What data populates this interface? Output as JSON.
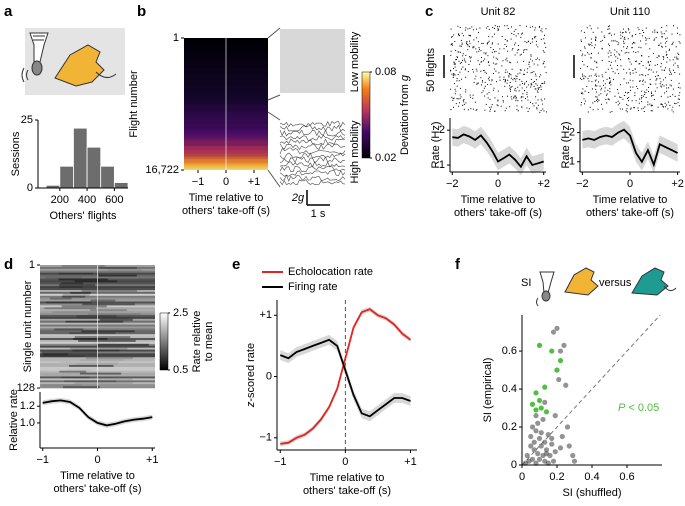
{
  "chart_data": [
    {
      "type": "histogram",
      "panel": "a",
      "xlabel": "Others' flights",
      "ylabel": "Sessions",
      "bins": [
        100,
        200,
        300,
        400,
        500,
        600,
        700
      ],
      "counts": [
        1,
        8,
        22,
        15,
        8,
        2
      ],
      "color": "#6d6d6d",
      "xlim": [
        40,
        700
      ],
      "xticks": [
        200,
        400,
        600
      ],
      "ylim": [
        0,
        25
      ],
      "yticks": [
        0,
        25
      ]
    },
    {
      "type": "heatmap",
      "panel": "b",
      "ylabel": "Flight number",
      "ylim": [
        1,
        16722
      ],
      "yticks": [
        1,
        {
          "value": 16722,
          "label": "16,722"
        }
      ],
      "xlim": [
        -1.5,
        1.5
      ],
      "xticks": [
        {
          "value": -1,
          "label": "−1"
        },
        0,
        {
          "value": 1,
          "label": "+1"
        }
      ],
      "xlabel": [
        "Time relative to",
        "others' take-off (s)"
      ],
      "colormap": "inferno",
      "colorbar": {
        "label": "Deviation from",
        "label_symbol": "g",
        "lim": [
          0.02,
          0.08
        ],
        "ticks": [
          0.02,
          0.08
        ]
      },
      "insets": [
        "Low mobility",
        "High mobility"
      ],
      "scalebars": [
        "2g",
        "1 s"
      ]
    },
    {
      "type": "line",
      "panel": "c",
      "title": "Unit 82",
      "raster_scale": "50 flights",
      "ylabel": "Rate (Hz)",
      "xlabel": [
        "Time relative to",
        "others' take-off (s)"
      ],
      "x": [
        -2,
        -1.75,
        -1.5,
        -1.25,
        -1,
        -0.75,
        -0.5,
        -0.25,
        0,
        0.25,
        0.5,
        0.75,
        1,
        1.25,
        1.5,
        1.75,
        2
      ],
      "series": [
        {
          "color": "#000000",
          "values": [
            1.8,
            1.78,
            1.88,
            1.82,
            1.72,
            1.85,
            1.65,
            1.4,
            1.1,
            1.2,
            1.3,
            1.15,
            0.95,
            1.25,
            1.0,
            1.05,
            1.1
          ],
          "error": [
            0.25,
            0.25,
            0.25,
            0.25,
            0.25,
            0.25,
            0.25,
            0.25,
            0.25,
            0.25,
            0.25,
            0.25,
            0.25,
            0.25,
            0.25,
            0.25,
            0.25
          ]
        }
      ],
      "xlim": [
        -2.1,
        2.1
      ],
      "xticks": [
        {
          "value": -2,
          "label": "−2"
        },
        0,
        {
          "value": 2,
          "label": "+2"
        }
      ],
      "ylim": [
        0.8,
        2.35
      ],
      "yticks": [
        1,
        2
      ]
    },
    {
      "type": "line",
      "title": "Unit 110",
      "ylabel": "Rate (Hz)",
      "xlabel": [
        "Time relative to",
        "others' take-off (s)"
      ],
      "x": [
        -2,
        -1.75,
        -1.5,
        -1.25,
        -1,
        -0.75,
        -0.5,
        -0.25,
        0,
        0.25,
        0.5,
        0.75,
        1,
        1.25,
        1.5,
        1.75,
        2
      ],
      "series": [
        {
          "color": "#000000",
          "values": [
            1.75,
            1.8,
            1.75,
            1.85,
            1.9,
            1.85,
            2.0,
            2.1,
            1.9,
            1.3,
            1.0,
            1.4,
            0.9,
            1.6,
            1.5,
            1.4,
            1.3
          ],
          "error": [
            0.3,
            0.3,
            0.3,
            0.3,
            0.3,
            0.3,
            0.3,
            0.3,
            0.3,
            0.3,
            0.3,
            0.3,
            0.3,
            0.3,
            0.3,
            0.3,
            0.3
          ]
        }
      ],
      "xlim": [
        -2.1,
        2.1
      ],
      "xticks": [
        {
          "value": -2,
          "label": "−2"
        },
        0,
        {
          "value": 2,
          "label": "+2"
        }
      ],
      "ylim": [
        0.65,
        2.5
      ],
      "yticks": [
        1,
        2
      ]
    },
    {
      "type": "heatmap",
      "panel": "d",
      "ylabel": "Single unit number",
      "ylim": [
        1,
        128
      ],
      "yticks": [
        1,
        128
      ],
      "xlim": [
        -1.05,
        1.05
      ],
      "colormap": "gray",
      "colorbar": {
        "label": [
          "Rate relative",
          "to mean"
        ],
        "lim": [
          0.5,
          2.5
        ],
        "ticks": [
          0.5,
          2.5
        ]
      }
    },
    {
      "type": "line",
      "ylabel": "Relative rate",
      "xlabel": [
        "Time relative to",
        "others' take-off (s)"
      ],
      "x": [
        -1,
        -0.83,
        -0.67,
        -0.5,
        -0.33,
        -0.17,
        0,
        0.17,
        0.33,
        0.5,
        0.67,
        0.83,
        1
      ],
      "series": [
        {
          "color": "#000000",
          "values": [
            1.24,
            1.26,
            1.27,
            1.25,
            1.18,
            1.07,
            1.0,
            0.97,
            0.99,
            1.02,
            1.04,
            1.05,
            1.07
          ],
          "error": [
            0.03,
            0.03,
            0.03,
            0.03,
            0.03,
            0.03,
            0.03,
            0.03,
            0.03,
            0.03,
            0.03,
            0.03,
            0.03
          ]
        }
      ],
      "xlim": [
        -1.05,
        1.05
      ],
      "xticks": [
        {
          "value": -1,
          "label": "−1"
        },
        0,
        {
          "value": 1,
          "label": "+1"
        }
      ],
      "ylim": [
        0.7,
        1.37
      ],
      "yticks": [
        {
          "value": 1,
          "label": "1.0"
        },
        1.2
      ]
    },
    {
      "type": "line",
      "panel": "e",
      "ylabel_symbol": "z",
      "ylabel": "-scored rate",
      "xlabel": [
        "Time relative to",
        "others' take-off (s)"
      ],
      "x": [
        -1,
        -0.875,
        -0.75,
        -0.625,
        -0.5,
        -0.375,
        -0.25,
        -0.125,
        0,
        0.125,
        0.25,
        0.375,
        0.5,
        0.625,
        0.75,
        0.875,
        1
      ],
      "series": [
        {
          "name": "Echolocation rate",
          "color": "#e8211c",
          "values": [
            -1.1,
            -1.08,
            -1.0,
            -0.95,
            -0.85,
            -0.7,
            -0.5,
            -0.2,
            0.3,
            0.8,
            1.05,
            1.1,
            1.0,
            0.95,
            0.85,
            0.7,
            0.6
          ],
          "error": [
            0.04,
            0.04,
            0.04,
            0.04,
            0.04,
            0.04,
            0.04,
            0.04,
            0.04,
            0.04,
            0.04,
            0.04,
            0.04,
            0.04,
            0.04,
            0.04,
            0.04
          ]
        },
        {
          "name": "Firing rate",
          "color": "#000000",
          "values": [
            0.35,
            0.3,
            0.4,
            0.45,
            0.5,
            0.55,
            0.6,
            0.5,
            0.1,
            -0.3,
            -0.6,
            -0.65,
            -0.55,
            -0.45,
            -0.35,
            -0.35,
            -0.4
          ],
          "error": [
            0.08,
            0.08,
            0.08,
            0.08,
            0.08,
            0.08,
            0.08,
            0.08,
            0.08,
            0.08,
            0.08,
            0.08,
            0.08,
            0.08,
            0.08,
            0.08,
            0.08
          ]
        }
      ],
      "xlim": [
        -1.05,
        1.1
      ],
      "xticks": [
        {
          "value": -1,
          "label": "−1"
        },
        0,
        {
          "value": 1,
          "label": "+1"
        }
      ],
      "ylim": [
        -1.2,
        1.25
      ],
      "yticks": [
        {
          "value": -1,
          "label": "−1"
        },
        0,
        {
          "value": 1,
          "label": "+1"
        }
      ],
      "legend": "top-left"
    },
    {
      "type": "scatter",
      "panel": "f",
      "xlabel": "SI (shuffled)",
      "ylabel": "SI (empirical)",
      "annotations": [
        "SI",
        "versus"
      ],
      "significance": {
        "symbol": "P",
        "text": "< 0.05",
        "color": "#4fbf3f"
      },
      "series": [
        {
          "color": "#3a3a3a",
          "x": [
            0.02,
            0.03,
            0.04,
            0.05,
            0.05,
            0.06,
            0.06,
            0.07,
            0.07,
            0.08,
            0.08,
            0.09,
            0.09,
            0.1,
            0.1,
            0.11,
            0.11,
            0.12,
            0.12,
            0.13,
            0.13,
            0.14,
            0.15,
            0.15,
            0.16,
            0.17,
            0.18,
            0.19,
            0.2,
            0.22,
            0.24,
            0.27,
            0.29,
            0.3,
            0.21,
            0.23,
            0.25,
            0.18,
            0.14,
            0.13,
            0.2,
            0.17,
            0.26,
            0.19,
            0.22,
            0.08
          ],
          "values": [
            0.01,
            0.05,
            0.02,
            0.1,
            0.15,
            0.03,
            0.2,
            0.08,
            0.12,
            0.18,
            0.01,
            0.06,
            0.22,
            0.14,
            0.03,
            0.1,
            0.17,
            0.05,
            0.24,
            0.12,
            0.02,
            0.08,
            0.16,
            0.01,
            0.05,
            0.11,
            0.02,
            0.07,
            0.72,
            0.6,
            0.63,
            0.1,
            0.05,
            0.02,
            0.45,
            0.15,
            0.42,
            0.7,
            0.06,
            0.33,
            0.5,
            0.14,
            0.2,
            0.26,
            0.09,
            0.26
          ]
        },
        {
          "color": "#4fbf3f",
          "x": [
            0.1,
            0.17,
            0.22,
            0.2,
            0.13,
            0.08,
            0.1,
            0.06,
            0.08,
            0.11,
            0.14
          ],
          "values": [
            0.63,
            0.6,
            0.55,
            0.5,
            0.41,
            0.38,
            0.34,
            0.32,
            0.29,
            0.3,
            0.28
          ]
        }
      ],
      "xlim": [
        0,
        0.8
      ],
      "xticks": [
        0,
        0.2,
        0.4,
        0.6
      ],
      "ylim": [
        0,
        0.79
      ],
      "yticks": [
        0,
        0.2,
        0.4,
        0.6
      ]
    }
  ]
}
